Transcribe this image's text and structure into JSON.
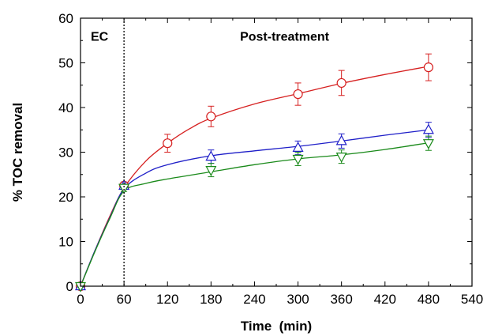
{
  "chart_data": {
    "type": "line",
    "xlabel": "Time  (min)",
    "ylabel": "% TOC removal",
    "xlim": [
      0,
      540
    ],
    "ylim": [
      0,
      60
    ],
    "xticks": [
      0,
      60,
      120,
      180,
      240,
      300,
      360,
      420,
      480,
      540
    ],
    "yticks": [
      0,
      10,
      20,
      30,
      40,
      50,
      60
    ],
    "grid": false,
    "legend": "none",
    "annotations": [
      {
        "text": "EC",
        "x": 25,
        "y": 56
      },
      {
        "text": "Post-treatment",
        "x": 220,
        "y": 56
      }
    ],
    "divider": {
      "x": 60,
      "style": "dotted"
    },
    "series": [
      {
        "marker": "circle",
        "color": "#d62020",
        "points": [
          {
            "x": 0,
            "y": 0,
            "err": 0
          },
          {
            "x": 60,
            "y": 22.5,
            "err": 0.8
          },
          {
            "x": 120,
            "y": 32,
            "err": 2
          },
          {
            "x": 180,
            "y": 38,
            "err": 2.3
          },
          {
            "x": 300,
            "y": 43,
            "err": 2.5
          },
          {
            "x": 360,
            "y": 45.5,
            "err": 2.8
          },
          {
            "x": 480,
            "y": 49,
            "err": 3
          }
        ],
        "curve": [
          [
            0,
            0
          ],
          [
            20,
            8
          ],
          [
            40,
            15.5
          ],
          [
            60,
            22
          ],
          [
            90,
            28
          ],
          [
            120,
            32
          ],
          [
            150,
            35.2
          ],
          [
            180,
            37.6
          ],
          [
            240,
            40.8
          ],
          [
            300,
            43.1
          ],
          [
            360,
            45.4
          ],
          [
            420,
            47.4
          ],
          [
            480,
            49.2
          ]
        ]
      },
      {
        "marker": "triangle-up",
        "color": "#1f1fc8",
        "points": [
          {
            "x": 0,
            "y": 0,
            "err": 0
          },
          {
            "x": 60,
            "y": 22.5,
            "err": 0.8
          },
          {
            "x": 180,
            "y": 29,
            "err": 1.5
          },
          {
            "x": 300,
            "y": 31,
            "err": 1.5
          },
          {
            "x": 360,
            "y": 32.5,
            "err": 1.6
          },
          {
            "x": 480,
            "y": 35,
            "err": 1.7
          }
        ],
        "curve": [
          [
            0,
            0
          ],
          [
            20,
            8
          ],
          [
            40,
            15.2
          ],
          [
            60,
            21.8
          ],
          [
            90,
            25.3
          ],
          [
            120,
            27.2
          ],
          [
            180,
            29.2
          ],
          [
            240,
            30.3
          ],
          [
            300,
            31.3
          ],
          [
            360,
            32.5
          ],
          [
            420,
            33.8
          ],
          [
            480,
            35
          ]
        ]
      },
      {
        "marker": "triangle-down",
        "color": "#1a8a1a",
        "points": [
          {
            "x": 0,
            "y": 0,
            "err": 0
          },
          {
            "x": 60,
            "y": 22,
            "err": 0.8
          },
          {
            "x": 180,
            "y": 26,
            "err": 1.5
          },
          {
            "x": 300,
            "y": 28.5,
            "err": 1.5
          },
          {
            "x": 360,
            "y": 29,
            "err": 1.5
          },
          {
            "x": 480,
            "y": 32,
            "err": 1.6
          }
        ],
        "curve": [
          [
            0,
            0
          ],
          [
            20,
            7.8
          ],
          [
            40,
            15
          ],
          [
            60,
            21.3
          ],
          [
            90,
            23
          ],
          [
            120,
            24
          ],
          [
            180,
            25.6
          ],
          [
            240,
            27.2
          ],
          [
            300,
            28.5
          ],
          [
            360,
            29.4
          ],
          [
            420,
            30.6
          ],
          [
            480,
            32.1
          ]
        ]
      }
    ]
  }
}
